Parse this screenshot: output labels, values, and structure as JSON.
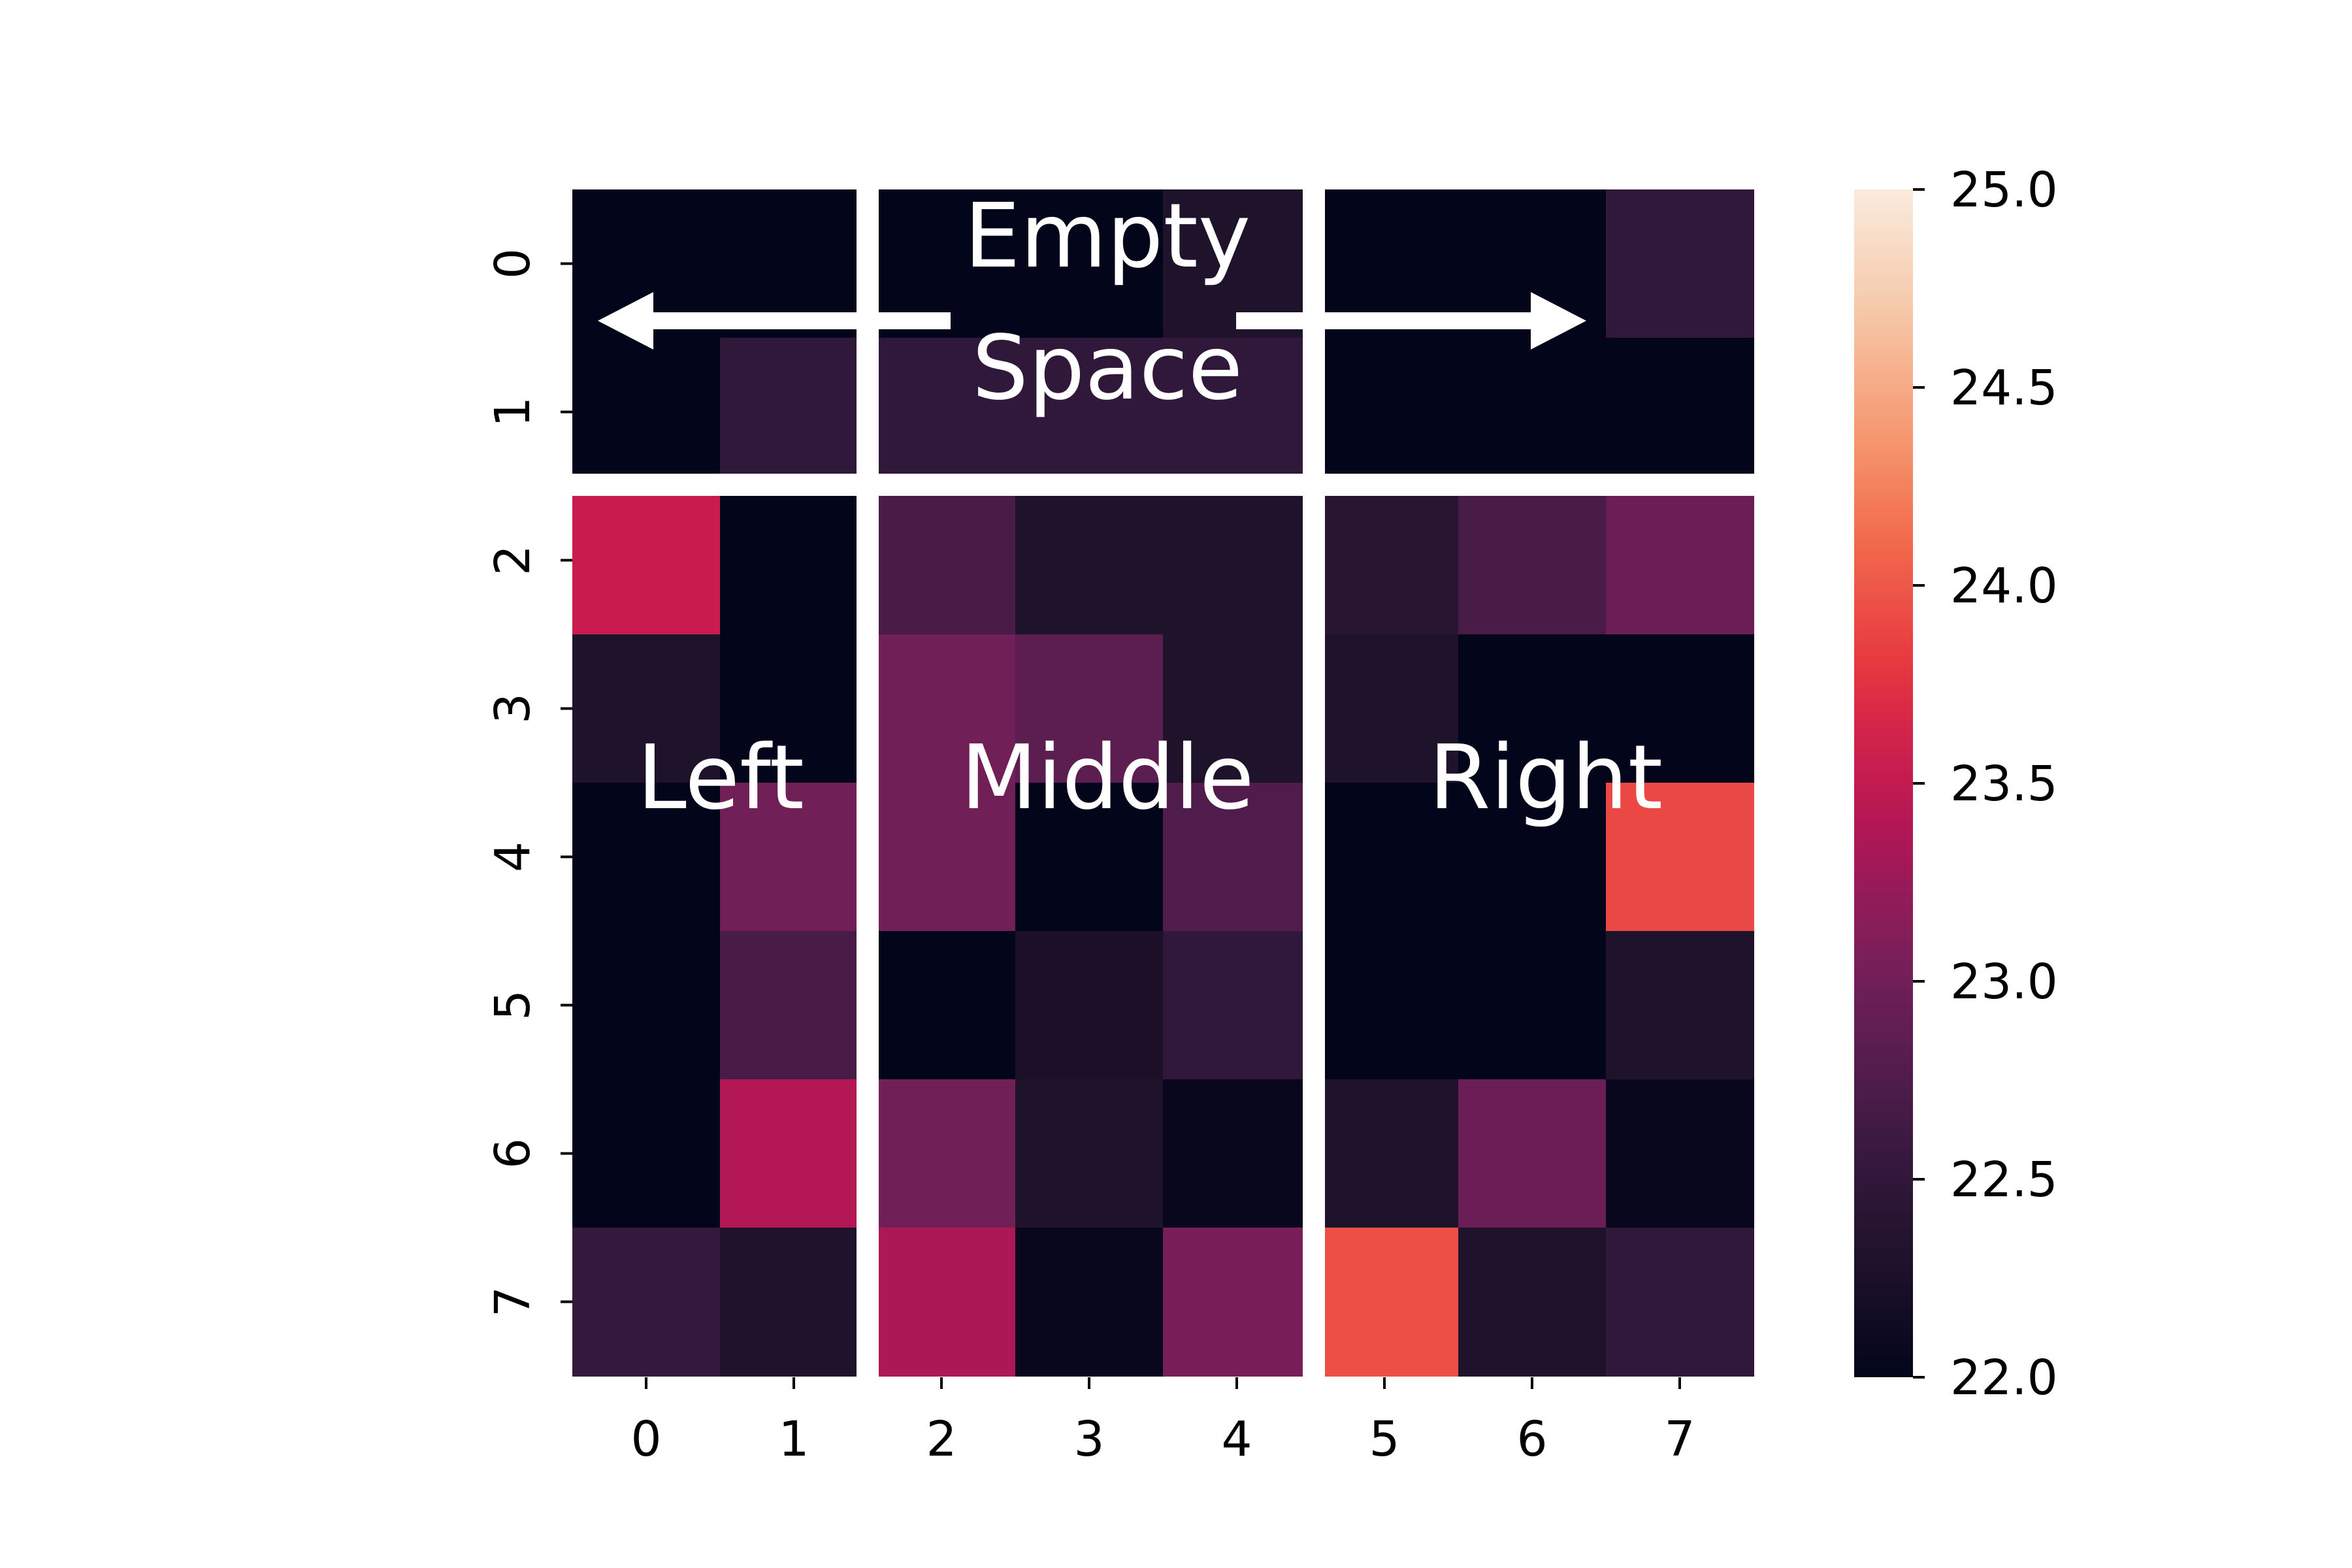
{
  "chart_data": {
    "type": "heatmap",
    "x_tick_labels": [
      "0",
      "1",
      "2",
      "3",
      "4",
      "5",
      "6",
      "7"
    ],
    "y_tick_labels": [
      "0",
      "1",
      "2",
      "3",
      "4",
      "5",
      "6",
      "7"
    ],
    "values": [
      [
        22.0,
        22.0,
        22.0,
        22.0,
        22.3,
        22.0,
        22.0,
        22.5
      ],
      [
        22.0,
        22.5,
        22.5,
        22.5,
        22.5,
        22.0,
        22.0,
        22.0
      ],
      [
        23.55,
        22.0,
        22.7,
        22.3,
        22.3,
        22.4,
        22.7,
        22.95
      ],
      [
        22.3,
        22.0,
        23.0,
        22.85,
        22.3,
        22.3,
        22.0,
        22.0
      ],
      [
        22.0,
        23.0,
        23.0,
        22.0,
        22.75,
        22.0,
        22.0,
        23.9
      ],
      [
        22.0,
        22.7,
        22.0,
        22.25,
        22.5,
        22.0,
        22.0,
        22.3
      ],
      [
        22.0,
        23.4,
        23.0,
        22.3,
        22.05,
        22.3,
        22.95,
        22.05
      ],
      [
        22.55,
        22.3,
        23.35,
        22.05,
        23.05,
        23.95,
        22.3,
        22.5
      ]
    ],
    "colorbar": {
      "range": [
        22.0,
        25.0
      ],
      "tick_labels": [
        "22.0",
        "22.5",
        "23.0",
        "23.5",
        "24.0",
        "24.5",
        "25.0"
      ],
      "colormap": "rocket"
    },
    "annotations": {
      "empty_space_line1": "Empty",
      "empty_space_line2": "Space",
      "left": "Left",
      "middle": "Middle",
      "right": "Right"
    }
  }
}
